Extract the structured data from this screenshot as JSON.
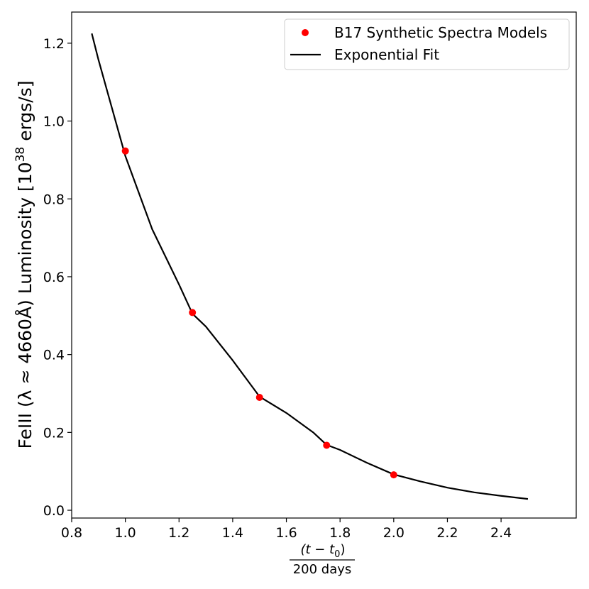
{
  "chart_data": {
    "type": "scatter",
    "title": "",
    "xlabel": {
      "numerator": "(t − t",
      "numerator_subscript": "0",
      "numerator_close": ")",
      "denominator": "200 days"
    },
    "ylabel": {
      "prefix": "FeIII (λ ≈ 4660Å) Luminosity [10",
      "superscript": "38",
      "suffix": " ergs/s]"
    },
    "xlim": [
      0.8,
      2.5
    ],
    "ylim": [
      -0.02,
      1.28
    ],
    "x_ticks": [
      "0.8",
      "1.0",
      "1.2",
      "1.4",
      "1.6",
      "1.8",
      "2.0",
      "2.2",
      "2.4"
    ],
    "y_ticks": [
      "0.0",
      "0.2",
      "0.4",
      "0.6",
      "0.8",
      "1.0",
      "1.2"
    ],
    "grid": false,
    "legend_position": "top-right",
    "series": [
      {
        "name": "B17 Synthetic Spectra Models",
        "kind": "points",
        "color": "#ff0000",
        "x": [
          1.0,
          1.25,
          1.5,
          1.75,
          2.0
        ],
        "y": [
          0.923,
          0.508,
          0.29,
          0.167,
          0.091
        ]
      },
      {
        "name": "Exponential Fit",
        "kind": "line",
        "color": "#000000",
        "x": [
          0.875,
          0.9,
          1.0,
          1.1,
          1.2,
          1.25,
          1.3,
          1.4,
          1.5,
          1.6,
          1.7,
          1.75,
          1.8,
          1.9,
          2.0,
          2.1,
          2.2,
          2.3,
          2.4,
          2.5
        ],
        "y": [
          1.225,
          1.157,
          0.91,
          0.722,
          0.58,
          0.505,
          0.472,
          0.385,
          0.292,
          0.25,
          0.2,
          0.168,
          0.155,
          0.122,
          0.092,
          0.074,
          0.058,
          0.046,
          0.037,
          0.029
        ]
      }
    ]
  }
}
